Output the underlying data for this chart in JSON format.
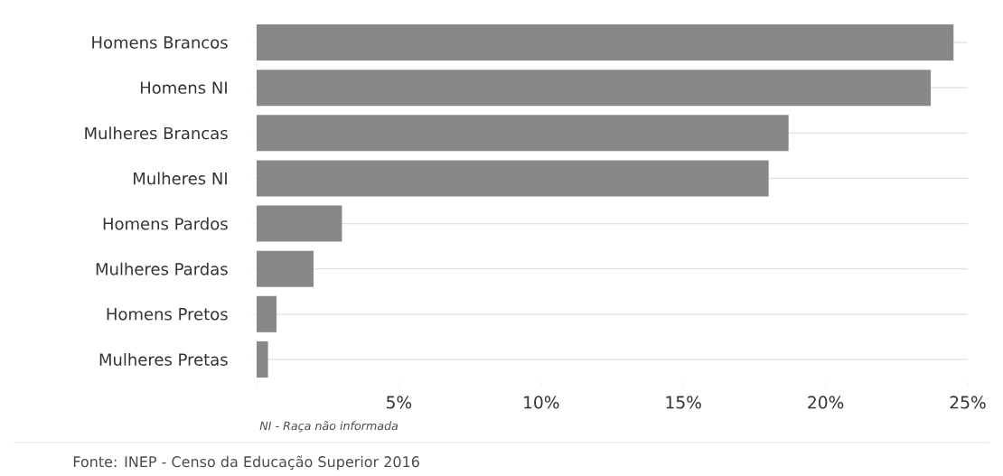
{
  "chart_data": {
    "type": "bar",
    "orientation": "horizontal",
    "categories": [
      "Homens Brancos",
      "Homens NI",
      "Mulheres Brancas",
      "Mulheres NI",
      "Homens Pardos",
      "Mulheres Pardas",
      "Homens Pretos",
      "Mulheres Pretas"
    ],
    "values": [
      24.5,
      23.7,
      18.7,
      18.0,
      3.0,
      2.0,
      0.7,
      0.4
    ],
    "color": "#888888",
    "xlim": [
      0,
      25
    ],
    "xticks": [
      {
        "value": 0,
        "label": null
      },
      {
        "value": 5,
        "label": "5%"
      },
      {
        "value": 10,
        "label": "10%"
      },
      {
        "value": 15,
        "label": "15%"
      },
      {
        "value": 20,
        "label": "20%"
      },
      {
        "value": 25,
        "label": "25%"
      }
    ],
    "grid": "y",
    "annotations": [
      "NI - Raça não informada",
      "Fonte: INEP - Censo da Educação Superior 2016"
    ]
  }
}
